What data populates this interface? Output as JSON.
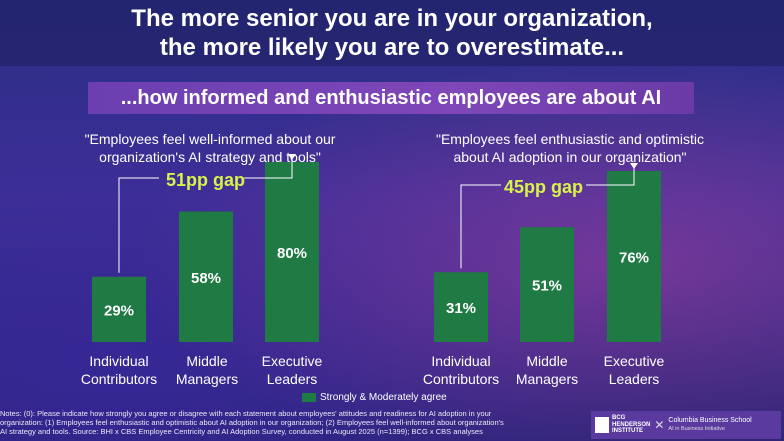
{
  "header": {
    "title_line1": "The more senior you are in your organization,",
    "title_line2": "the more likely you are to overestimate...",
    "subtitle": "...how informed and enthusiastic employees are about AI"
  },
  "colors": {
    "bar": "#1f7a44",
    "gap_text": "#d9f24a",
    "accent": "#7f47b8"
  },
  "chart_data": [
    {
      "type": "bar",
      "title_line1": "\"Employees feel well-informed about our",
      "title_line2": "organization's AI strategy and tools\"",
      "categories": [
        {
          "line1": "Individual",
          "line2": "Contributors"
        },
        {
          "line1": "Middle",
          "line2": "Managers"
        },
        {
          "line1": "Executive",
          "line2": "Leaders"
        }
      ],
      "values": [
        29,
        58,
        80
      ],
      "value_labels": [
        "29%",
        "58%",
        "80%"
      ],
      "gap_label": "51pp gap",
      "ylim": [
        0,
        100
      ]
    },
    {
      "type": "bar",
      "title_line1": "\"Employees feel enthusiastic and optimistic",
      "title_line2": "about AI adoption in our organization\"",
      "categories": [
        {
          "line1": "Individual",
          "line2": "Contributors"
        },
        {
          "line1": "Middle",
          "line2": "Managers"
        },
        {
          "line1": "Executive",
          "line2": "Leaders"
        }
      ],
      "values": [
        31,
        51,
        76
      ],
      "value_labels": [
        "31%",
        "51%",
        "76%"
      ],
      "gap_label": "45pp gap",
      "ylim": [
        0,
        100
      ]
    }
  ],
  "legend": {
    "label": "Strongly & Moderately agree"
  },
  "notes": {
    "line1": "Notes: (0): Please indicate how strongly you agree or disagree with each statement about employees' attitudes and readiness for AI adoption in your",
    "line2": "organization: (1) Employees feel enthusiastic and optimistic about AI adoption in our organization; (2) Employees feel well-informed about organization's",
    "line3": "AI strategy and tools. Source: BHI x CBS Employee Centricity and AI Adoption Survey, conducted in August 2025 (n=1399); BCG x CBS analyses"
  },
  "logos": {
    "bcg_line1": "BCG",
    "bcg_line2": "HENDERSON",
    "bcg_line3": "INSTITUTE",
    "cbs_line1": "Columbia Business School",
    "cbs_line2": "AI in Business Initiative"
  }
}
